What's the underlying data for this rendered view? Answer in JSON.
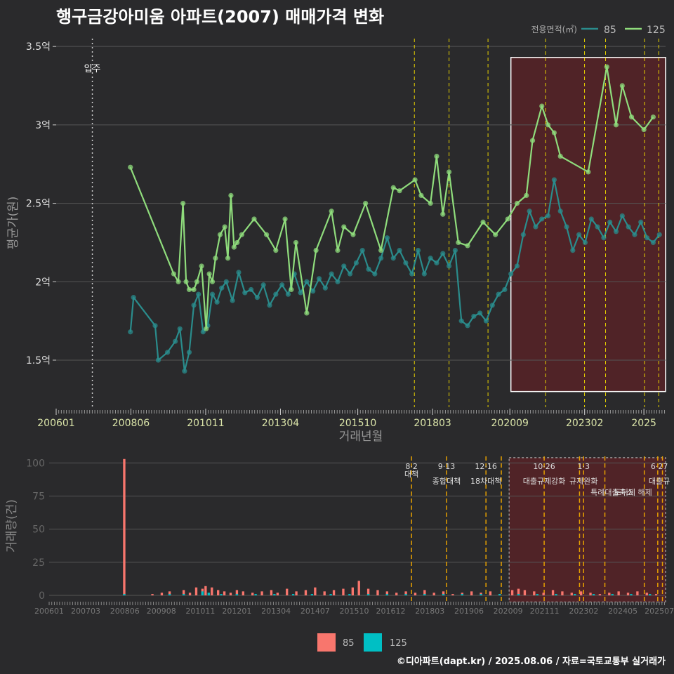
{
  "title": "행구금강아미움 아파트(2007) 매매가격 변화",
  "credit": "©디아파트(dapt.kr) / 2025.08.06 / 자료=국토교통부 실거래가",
  "colors": {
    "background": "#2a2a2c",
    "grid": "#555555",
    "series85": "#2a8c8c",
    "series125": "#8fdc7c",
    "bar85": "#f8766d",
    "bar125": "#00bfc4",
    "shade": "#6a1f25",
    "policy": "#e8d300",
    "policyBottom": "#e6a000"
  },
  "chart_data": [
    {
      "type": "line",
      "title": "행구금강아미움 아파트(2007) 매매가격 변화",
      "xlabel": "거래년월",
      "ylabel": "평균가(원)",
      "ylim": [
        1.2,
        3.55
      ],
      "y_ticks": [
        1.5,
        2,
        2.5,
        3,
        3.5
      ],
      "y_tick_labels": [
        "1.5억",
        "2억",
        "2.5억",
        "3억",
        "3.5억"
      ],
      "x_ticks": [
        "200601",
        "200806",
        "201011",
        "201304",
        "201510",
        "201803",
        "202009",
        "202302",
        "2025"
      ],
      "legend_title": "전용면적(㎡)",
      "legend_position": "top-right",
      "grid": true,
      "annotation": "입주",
      "move_in": 2007.17,
      "policy_lines": [
        2017.58,
        2018.7,
        2019.96,
        2021.82,
        2023.08,
        2023.76,
        2025.02,
        2025.48
      ],
      "highlight": [
        2020.7,
        2025.7
      ],
      "series": [
        {
          "name": "85",
          "x": [
            2008.4,
            2008.5,
            2009.2,
            2009.3,
            2009.6,
            2009.85,
            2010.0,
            2010.15,
            2010.3,
            2010.45,
            2010.6,
            2010.75,
            2010.9,
            2011.05,
            2011.2,
            2011.35,
            2011.5,
            2011.7,
            2011.9,
            2012.1,
            2012.3,
            2012.5,
            2012.7,
            2012.9,
            2013.1,
            2013.3,
            2013.5,
            2013.7,
            2013.9,
            2014.1,
            2014.3,
            2014.5,
            2014.7,
            2014.9,
            2015.1,
            2015.3,
            2015.5,
            2015.7,
            2015.9,
            2016.1,
            2016.3,
            2016.5,
            2016.7,
            2016.9,
            2017.1,
            2017.3,
            2017.5,
            2017.7,
            2017.9,
            2018.1,
            2018.3,
            2018.5,
            2018.7,
            2018.9,
            2019.1,
            2019.3,
            2019.5,
            2019.7,
            2019.9,
            2020.1,
            2020.3,
            2020.5,
            2020.7,
            2020.9,
            2021.1,
            2021.3,
            2021.5,
            2021.7,
            2021.9,
            2022.1,
            2022.3,
            2022.5,
            2022.7,
            2022.9,
            2023.1,
            2023.3,
            2023.5,
            2023.7,
            2023.9,
            2024.1,
            2024.3,
            2024.5,
            2024.7,
            2024.9,
            2025.1,
            2025.3,
            2025.5
          ],
          "y": [
            1.68,
            1.9,
            1.72,
            1.5,
            1.55,
            1.62,
            1.7,
            1.43,
            1.55,
            1.85,
            1.92,
            1.68,
            1.72,
            1.92,
            1.87,
            1.96,
            2.0,
            1.88,
            2.06,
            1.93,
            1.95,
            1.9,
            1.98,
            1.85,
            1.92,
            1.98,
            1.92,
            2.05,
            1.93,
            2.0,
            1.94,
            2.02,
            1.96,
            2.05,
            2.0,
            2.1,
            2.05,
            2.12,
            2.2,
            2.08,
            2.05,
            2.15,
            2.28,
            2.15,
            2.2,
            2.12,
            2.05,
            2.2,
            2.05,
            2.15,
            2.12,
            2.18,
            2.1,
            2.2,
            1.75,
            1.72,
            1.78,
            1.8,
            1.75,
            1.85,
            1.92,
            1.95,
            2.05,
            2.1,
            2.3,
            2.45,
            2.35,
            2.4,
            2.42,
            2.65,
            2.45,
            2.35,
            2.2,
            2.3,
            2.25,
            2.4,
            2.35,
            2.28,
            2.38,
            2.32,
            2.42,
            2.35,
            2.3,
            2.38,
            2.28,
            2.25,
            2.3
          ]
        },
        {
          "name": "125",
          "x": [
            2008.4,
            2009.8,
            2009.95,
            2010.1,
            2010.2,
            2010.3,
            2010.45,
            2010.55,
            2010.7,
            2010.85,
            2010.95,
            2011.05,
            2011.15,
            2011.3,
            2011.45,
            2011.55,
            2011.65,
            2011.75,
            2011.85,
            2012.0,
            2012.4,
            2012.8,
            2013.1,
            2013.4,
            2013.6,
            2013.75,
            2014.1,
            2014.4,
            2014.9,
            2015.1,
            2015.3,
            2015.6,
            2016.0,
            2016.5,
            2016.9,
            2017.1,
            2017.6,
            2017.8,
            2018.1,
            2018.3,
            2018.5,
            2018.7,
            2019.0,
            2019.3,
            2019.8,
            2020.2,
            2020.6,
            2020.9,
            2021.2,
            2021.4,
            2021.7,
            2021.9,
            2022.1,
            2022.3,
            2023.2,
            2023.8,
            2024.1,
            2024.3,
            2024.6,
            2025.0,
            2025.3
          ],
          "y": [
            2.73,
            2.05,
            2.0,
            2.5,
            2.0,
            1.95,
            1.95,
            2.0,
            2.1,
            1.7,
            2.05,
            2.0,
            2.15,
            2.3,
            2.35,
            2.15,
            2.55,
            2.22,
            2.25,
            2.3,
            2.4,
            2.3,
            2.2,
            2.4,
            1.95,
            2.25,
            1.8,
            2.2,
            2.45,
            2.2,
            2.35,
            2.3,
            2.5,
            2.2,
            2.6,
            2.58,
            2.65,
            2.55,
            2.5,
            2.8,
            2.43,
            2.7,
            2.25,
            2.23,
            2.38,
            2.3,
            2.4,
            2.5,
            2.55,
            2.9,
            3.12,
            3.0,
            2.95,
            2.8,
            2.7,
            3.37,
            3.0,
            3.25,
            3.05,
            2.97,
            3.05
          ]
        }
      ]
    },
    {
      "type": "bar",
      "xlabel": "",
      "ylabel": "거래량(건)",
      "ylim": [
        0,
        105
      ],
      "y_ticks": [
        0,
        25,
        50,
        75,
        100
      ],
      "x_ticks": [
        "200601",
        "200703",
        "200806",
        "200908",
        "201011",
        "201201",
        "201304",
        "201407",
        "201510",
        "201612",
        "201803",
        "201906",
        "202009",
        "202111",
        "202302",
        "202405",
        "202507"
      ],
      "legend_position": "bottom",
      "policy_lines": [
        2017.58,
        2018.7,
        2019.96,
        2020.45,
        2021.82,
        2022.95,
        2023.08,
        2023.76,
        2025.02,
        2025.45,
        2025.6
      ],
      "highlight": [
        2020.7,
        2025.7
      ],
      "annotations": [
        {
          "x": 2017.58,
          "date": "8·2",
          "text": "대책"
        },
        {
          "x": 2018.7,
          "date": "9·13",
          "text": "종합대책"
        },
        {
          "x": 2019.96,
          "date": "12·16",
          "text": "18차대책"
        },
        {
          "x": 2021.82,
          "date": "10·26",
          "text": "대출규제강화"
        },
        {
          "x": 2023.08,
          "date": "1·3",
          "text": "규제완화"
        },
        {
          "x": 2023.76,
          "date": "9·7",
          "text": "특례대출축소"
        },
        {
          "x": 2025.02,
          "date": "",
          "text": "토허제 해제"
        },
        {
          "x": 2025.5,
          "date": "6·27",
          "text": "대출규"
        }
      ],
      "series": [
        {
          "name": "85",
          "x": [
            2008.4,
            2009.3,
            2009.6,
            2009.85,
            2010.3,
            2010.5,
            2010.7,
            2010.9,
            2011.0,
            2011.2,
            2011.4,
            2011.6,
            2011.8,
            2012.0,
            2012.2,
            2012.5,
            2012.8,
            2013.1,
            2013.3,
            2013.6,
            2013.9,
            2014.2,
            2014.5,
            2014.8,
            2015.1,
            2015.4,
            2015.7,
            2015.9,
            2016.2,
            2016.5,
            2016.8,
            2017.1,
            2017.4,
            2017.7,
            2018.0,
            2018.3,
            2018.6,
            2018.9,
            2019.2,
            2019.5,
            2019.8,
            2020.1,
            2020.4,
            2020.8,
            2021.0,
            2021.2,
            2021.5,
            2021.8,
            2022.1,
            2022.4,
            2022.7,
            2023.0,
            2023.3,
            2023.6,
            2023.9,
            2024.2,
            2024.5,
            2024.8,
            2025.1,
            2025.4
          ],
          "y": [
            103,
            1,
            2,
            3,
            4,
            2,
            6,
            5,
            7,
            6,
            4,
            3,
            2,
            4,
            3,
            2,
            3,
            4,
            2,
            5,
            3,
            4,
            6,
            3,
            4,
            5,
            6,
            11,
            5,
            4,
            3,
            2,
            3,
            2,
            4,
            2,
            3,
            1,
            2,
            3,
            2,
            3,
            1,
            4,
            5,
            4,
            3,
            2,
            4,
            3,
            2,
            3,
            2,
            1,
            2,
            3,
            2,
            3,
            2,
            1
          ]
        },
        {
          "name": "125",
          "x": [
            2008.4,
            2009.85,
            2010.3,
            2010.9,
            2011.1,
            2011.5,
            2012.0,
            2012.6,
            2013.2,
            2013.8,
            2014.4,
            2015.0,
            2015.6,
            2016.2,
            2016.8,
            2017.4,
            2018.0,
            2018.6,
            2019.2,
            2019.8,
            2020.4,
            2021.0,
            2021.6,
            2022.2,
            2022.8,
            2023.4,
            2024.0,
            2024.6,
            2025.2
          ],
          "y": [
            1,
            1,
            1,
            3,
            2,
            1,
            1,
            1,
            1,
            1,
            1,
            1,
            1,
            1,
            1,
            1,
            1,
            1,
            1,
            1,
            1,
            1,
            1,
            1,
            1,
            1,
            1,
            1,
            1
          ]
        }
      ]
    }
  ]
}
